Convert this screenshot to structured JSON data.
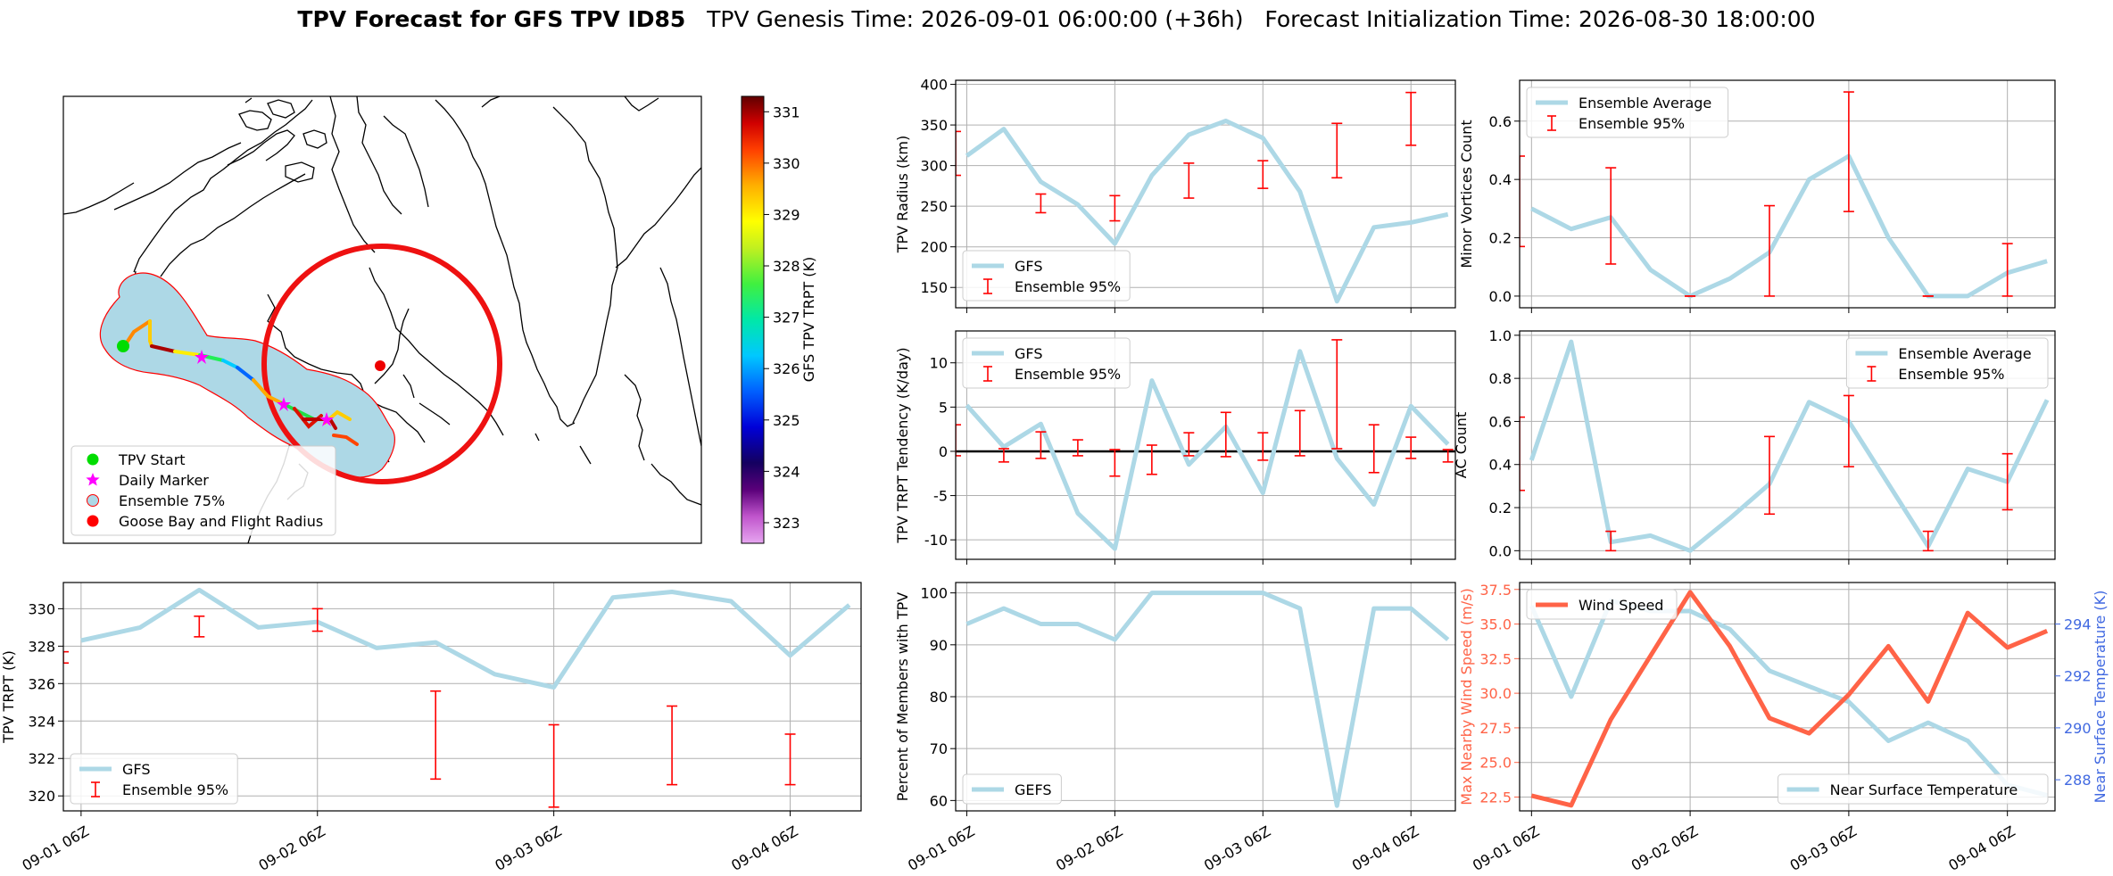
{
  "figure": {
    "title_bold": "TPV Forecast for GFS TPV ID85",
    "title_rest": "   TPV Genesis Time: 2026-09-01 06:00:00 (+36h)   Forecast Initialization Time: 2026-08-30 18:00:00"
  },
  "colors": {
    "gfs": "#add8e6",
    "ensemble": "#ff0000",
    "wind": "#ff6347",
    "temp_axis": "#4169e1"
  },
  "map": {
    "colorbar_label": "GFS TPV TRPT (K)",
    "colorbar_ticks": [
      "323",
      "324",
      "325",
      "326",
      "327",
      "328",
      "329",
      "330",
      "331"
    ],
    "colorbar_range": [
      322.6,
      331.3
    ],
    "legend": [
      {
        "label": "TPV Start",
        "marker": "circle",
        "color": "#00dd00"
      },
      {
        "label": "Daily Marker",
        "marker": "star",
        "color": "#ff00ff"
      },
      {
        "label": "Ensemble 75%",
        "marker": "circle",
        "color": "#add8e6"
      },
      {
        "label": "Goose Bay and Flight Radius",
        "marker": "circle",
        "color": "#ff0000"
      }
    ]
  },
  "chart_data": [
    {
      "id": "radius",
      "type": "line",
      "ylabel": "TPV Radius (km)",
      "x": [
        0,
        1,
        2,
        3,
        4,
        5,
        6,
        7,
        8,
        9,
        10,
        11,
        12,
        13
      ],
      "ylim": [
        125,
        405
      ],
      "yticks": [
        150,
        200,
        250,
        300,
        350,
        400
      ],
      "series": [
        {
          "name": "GFS",
          "values": [
            312,
            345,
            280,
            252,
            204,
            288,
            338,
            355,
            334,
            268,
            133,
            224,
            230,
            240
          ]
        }
      ],
      "errorbars": {
        "name": "Ensemble 95%",
        "x": [
          -0.3,
          2,
          4,
          6,
          8,
          10,
          12
        ],
        "low": [
          288,
          242,
          232,
          260,
          272,
          285,
          325
        ],
        "high": [
          342,
          265,
          263,
          303,
          306,
          352,
          390
        ]
      },
      "legend": "bottom-left"
    },
    {
      "id": "minor",
      "type": "line",
      "ylabel": "Minor Vortices Count",
      "x": [
        0,
        1,
        2,
        3,
        4,
        5,
        6,
        7,
        8,
        9,
        10,
        11,
        12,
        13
      ],
      "ylim": [
        -0.04,
        0.74
      ],
      "yticks": [
        0.0,
        0.2,
        0.4,
        0.6
      ],
      "series": [
        {
          "name": "Ensemble Average",
          "values": [
            0.3,
            0.23,
            0.27,
            0.09,
            0.0,
            0.06,
            0.15,
            0.4,
            0.48,
            0.2,
            0.0,
            0.0,
            0.08,
            0.12
          ]
        }
      ],
      "errorbars": {
        "name": "Ensemble 95%",
        "x": [
          -0.3,
          2,
          4,
          6,
          8,
          10,
          12
        ],
        "low": [
          0.17,
          0.11,
          0.0,
          0.0,
          0.29,
          0.0,
          0.0
        ],
        "high": [
          0.48,
          0.44,
          0.0,
          0.31,
          0.7,
          0.0,
          0.18
        ]
      },
      "legend": "top-left"
    },
    {
      "id": "tendency",
      "type": "line",
      "ylabel": "TPV TRPT Tendency (K/day)",
      "x": [
        0,
        1,
        2,
        3,
        4,
        5,
        6,
        7,
        8,
        9,
        10,
        11,
        12,
        13
      ],
      "ylim": [
        -12.2,
        13.6
      ],
      "yticks": [
        -10,
        -5,
        0,
        5,
        10
      ],
      "zero_line": true,
      "series": [
        {
          "name": "GFS",
          "values": [
            5.2,
            0.5,
            3.1,
            -7.0,
            -11.0,
            8.0,
            -1.5,
            2.8,
            -4.7,
            11.3,
            -0.8,
            -6.0,
            5.1,
            0.8
          ]
        }
      ],
      "errorbars": {
        "name": "Ensemble 95%",
        "x": [
          -0.3,
          1,
          2,
          3,
          4,
          5,
          6,
          7,
          8,
          9,
          10,
          11,
          12,
          13
        ],
        "low": [
          -0.5,
          -1.2,
          -0.8,
          -0.5,
          -2.8,
          -2.6,
          -0.5,
          -0.6,
          -1.0,
          -0.5,
          0.3,
          -2.4,
          -0.8,
          -1.2
        ],
        "high": [
          3.0,
          0.3,
          2.2,
          1.3,
          0.2,
          0.7,
          2.1,
          4.4,
          2.1,
          4.6,
          12.6,
          3.0,
          1.6,
          0.2
        ]
      },
      "legend": "top-left"
    },
    {
      "id": "ac",
      "type": "line",
      "ylabel": "AC Count",
      "x": [
        0,
        1,
        2,
        3,
        4,
        5,
        6,
        7,
        8,
        9,
        10,
        11,
        12,
        13
      ],
      "ylim": [
        -0.04,
        1.02
      ],
      "yticks": [
        0.0,
        0.2,
        0.4,
        0.6,
        0.8,
        1.0
      ],
      "series": [
        {
          "name": "Ensemble Average",
          "values": [
            0.42,
            0.97,
            0.04,
            0.07,
            0.0,
            0.15,
            0.31,
            0.69,
            0.6,
            0.31,
            0.02,
            0.38,
            0.32,
            0.7
          ]
        }
      ],
      "errorbars": {
        "name": "Ensemble 95%",
        "x": [
          -0.3,
          2,
          6,
          8,
          10,
          12
        ],
        "low": [
          0.28,
          0.0,
          0.17,
          0.39,
          0.0,
          0.19
        ],
        "high": [
          0.62,
          0.09,
          0.53,
          0.72,
          0.09,
          0.45
        ]
      },
      "legend": "top-right"
    },
    {
      "id": "trpt",
      "type": "line",
      "ylabel": "TPV TRPT (K)",
      "x": [
        0,
        1,
        2,
        3,
        4,
        5,
        6,
        7,
        8,
        9,
        10,
        11,
        12,
        13
      ],
      "xticks": [
        0,
        4,
        8,
        12
      ],
      "xticklabels": [
        "09-01 06Z",
        "09-02 06Z",
        "09-03 06Z",
        "09-04 06Z"
      ],
      "ylim": [
        319.2,
        331.4
      ],
      "yticks": [
        320,
        322,
        324,
        326,
        328,
        330
      ],
      "series": [
        {
          "name": "GFS",
          "values": [
            328.3,
            329.0,
            331.0,
            329.0,
            329.3,
            327.9,
            328.2,
            326.5,
            325.8,
            330.6,
            330.9,
            330.4,
            327.5,
            330.2
          ]
        }
      ],
      "errorbars": {
        "name": "Ensemble 95%",
        "x": [
          -0.3,
          2,
          4,
          6,
          8,
          10,
          12
        ],
        "low": [
          327.1,
          328.5,
          328.8,
          320.9,
          319.4,
          320.6,
          320.6
        ],
        "high": [
          327.7,
          329.6,
          330.0,
          325.6,
          323.8,
          324.8,
          323.3
        ]
      },
      "legend": "bottom-left"
    },
    {
      "id": "members",
      "type": "line",
      "ylabel": "Percent of Members with TPV",
      "x": [
        0,
        1,
        2,
        3,
        4,
        5,
        6,
        7,
        8,
        9,
        10,
        11,
        12,
        13
      ],
      "xticks": [
        0,
        4,
        8,
        12
      ],
      "xticklabels": [
        "09-01 06Z",
        "09-02 06Z",
        "09-03 06Z",
        "09-04 06Z"
      ],
      "ylim": [
        58,
        102
      ],
      "yticks": [
        60,
        70,
        80,
        90,
        100
      ],
      "series": [
        {
          "name": "GEFS",
          "values": [
            94,
            97,
            94,
            94,
            91,
            100,
            100,
            100,
            100,
            97,
            59,
            97,
            97,
            91
          ]
        }
      ],
      "legend": "bottom-left"
    },
    {
      "id": "wind_temp",
      "type": "line",
      "ylabel": "Max Nearby Wind Speed (m/s)",
      "y2label": "Near Surface Temperature (K)",
      "x": [
        0,
        1,
        2,
        3,
        4,
        5,
        6,
        7,
        8,
        9,
        10,
        11,
        12,
        13
      ],
      "xticks": [
        0,
        4,
        8,
        12
      ],
      "xticklabels": [
        "09-01 06Z",
        "09-02 06Z",
        "09-03 06Z",
        "09-04 06Z"
      ],
      "ylim": [
        21.5,
        38.0
      ],
      "yticks": [
        22.5,
        25.0,
        27.5,
        30.0,
        32.5,
        35.0,
        37.5
      ],
      "y2lim": [
        286.8,
        295.6
      ],
      "y2ticks": [
        288,
        290,
        292,
        294
      ],
      "series": [
        {
          "name": "Wind Speed",
          "axis": "left",
          "values": [
            22.6,
            21.9,
            28.1,
            32.7,
            37.3,
            33.4,
            28.2,
            27.1,
            29.9,
            33.4,
            29.4,
            35.8,
            33.3,
            34.5
          ]
        },
        {
          "name": "Near Surface Temperature",
          "axis": "right",
          "values": [
            294.7,
            291.2,
            294.9,
            294.5,
            294.5,
            293.8,
            292.2,
            291.6,
            291.0,
            289.5,
            290.2,
            289.5,
            287.8,
            287.4
          ]
        }
      ],
      "legend": "wind top-left; temperature bottom-right"
    }
  ]
}
